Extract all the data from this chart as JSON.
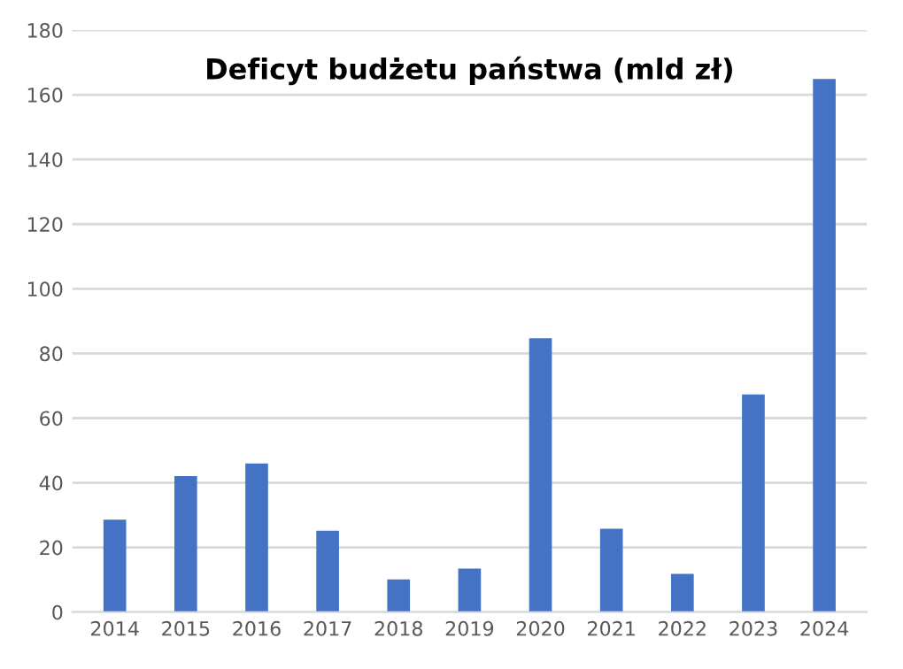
{
  "chart_data": {
    "type": "bar",
    "title": "Deficyt budżetu państwa (mld zł)",
    "categories": [
      "2014",
      "2015",
      "2016",
      "2017",
      "2018",
      "2019",
      "2020",
      "2021",
      "2022",
      "2023",
      "2024"
    ],
    "values": [
      28.6,
      42.1,
      46.0,
      25.2,
      10.1,
      13.5,
      84.7,
      25.8,
      11.8,
      67.3,
      164.9
    ],
    "color": "#4472c4",
    "ylim": [
      0,
      180
    ],
    "yticks": [
      0,
      20,
      40,
      60,
      80,
      100,
      120,
      140,
      160,
      180
    ],
    "grid": "y"
  }
}
